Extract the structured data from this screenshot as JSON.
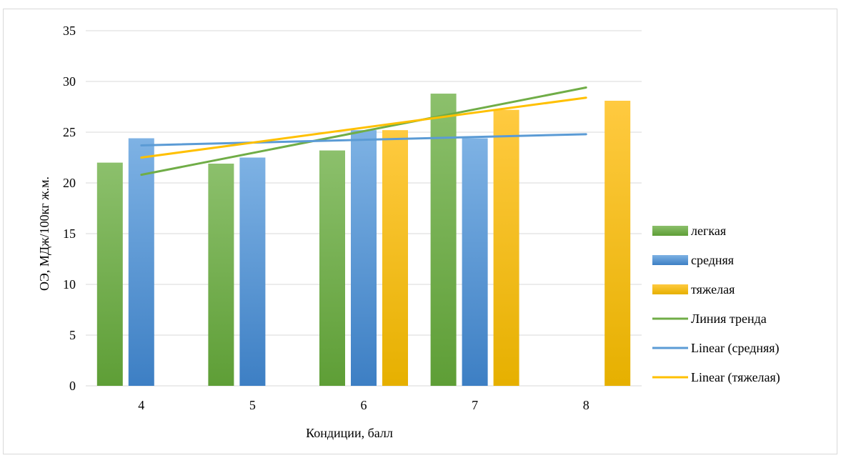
{
  "chart_data": {
    "type": "bar",
    "xlabel": "Кондиции, балл",
    "ylabel": "ОЭ, МДж/100кг ж.м.",
    "categories": [
      "4",
      "5",
      "6",
      "7",
      "8"
    ],
    "ylim": [
      0,
      35
    ],
    "yticks": [
      "0",
      "5",
      "10",
      "15",
      "20",
      "25",
      "30",
      "35"
    ],
    "grid": true,
    "legend_position": "right",
    "series": [
      {
        "name": "легкая",
        "color": "#70AD47",
        "values": [
          22.0,
          21.9,
          23.2,
          28.8,
          null
        ]
      },
      {
        "name": "средняя",
        "color": "#5B9BD5",
        "values": [
          24.4,
          22.5,
          25.2,
          24.4,
          null
        ]
      },
      {
        "name": "тяжелая",
        "color": "#FFC000",
        "values": [
          null,
          null,
          25.2,
          27.2,
          28.1
        ]
      }
    ],
    "trendlines": [
      {
        "name": "Линия тренда",
        "color": "#70AD47",
        "x_start": "4",
        "x_end": "8",
        "y_start": 20.8,
        "y_end": 29.4
      },
      {
        "name": "Linear (средняя)",
        "color": "#5B9BD5",
        "x_start": "4",
        "x_end": "8",
        "y_start": 23.7,
        "y_end": 24.8
      },
      {
        "name": "Linear (тяжелая)",
        "color": "#FFC000",
        "x_start": "4",
        "x_end": "8",
        "y_start": 22.5,
        "y_end": 28.4
      }
    ]
  }
}
